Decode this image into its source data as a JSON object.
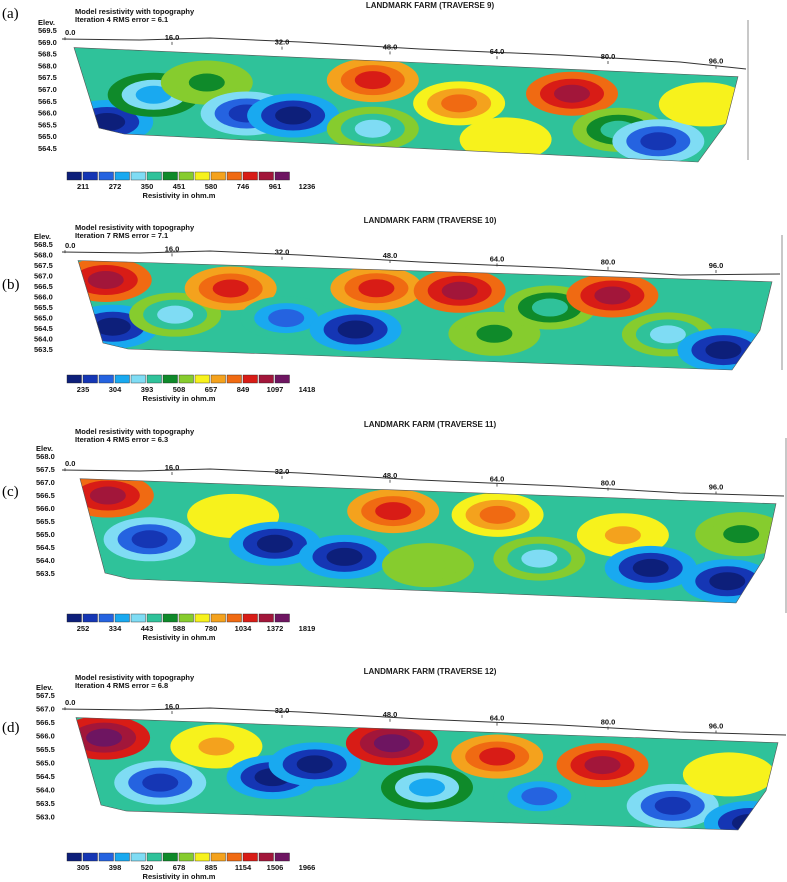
{
  "labels": [
    "(a)",
    "(b)",
    "(c)",
    "(d)"
  ],
  "panels": [
    {
      "title": "LANDMARK FARM (TRAVERSE 9)",
      "header1": "Model resistivity with topography",
      "header2": "Iteration 4 RMS error = 6.1",
      "elev_label": "Elev.",
      "elev_ticks": [
        "569.5",
        "569.0",
        "568.5",
        "568.0",
        "567.5",
        "567.0",
        "566.5",
        "566.0",
        "565.5",
        "565.0",
        "564.5"
      ],
      "x_ticks": [
        "0.0",
        "16.0",
        "32.0",
        "48.0",
        "64.0",
        "80.0",
        "96.0"
      ],
      "colorbar_values": [
        "211",
        "272",
        "350",
        "451",
        "580",
        "746",
        "961",
        "1236"
      ],
      "colorbar_title": "Resistivity in ohm.m"
    },
    {
      "title": "LANDMARK FARM (TRAVERSE 10)",
      "header1": "Model resistivity with topography",
      "header2": "Iteration 7 RMS error = 7.1",
      "elev_label": "Elev.",
      "elev_ticks": [
        "568.5",
        "568.0",
        "567.5",
        "567.0",
        "566.5",
        "566.0",
        "565.5",
        "565.0",
        "564.5",
        "564.0",
        "563.5"
      ],
      "x_ticks": [
        "0.0",
        "16.0",
        "32.0",
        "48.0",
        "64.0",
        "80.0",
        "96.0"
      ],
      "colorbar_values": [
        "235",
        "304",
        "393",
        "508",
        "657",
        "849",
        "1097",
        "1418"
      ],
      "colorbar_title": "Resistivity in ohm.m"
    },
    {
      "title": "LANDMARK FARM (TRAVERSE 11)",
      "header1": "Model resistivity with topography",
      "header2": "Iteration 4 RMS error = 6.3",
      "elev_label": "Elev.",
      "elev_ticks": [
        "568.0",
        "567.5",
        "567.0",
        "566.5",
        "566.0",
        "565.5",
        "565.0",
        "564.5",
        "564.0",
        "563.5"
      ],
      "x_ticks": [
        "0.0",
        "16.0",
        "32.0",
        "48.0",
        "64.0",
        "80.0",
        "96.0"
      ],
      "colorbar_values": [
        "252",
        "334",
        "443",
        "588",
        "780",
        "1034",
        "1372",
        "1819"
      ],
      "colorbar_title": "Resistivity in ohm.m"
    },
    {
      "title": "LANDMARK FARM (TRAVERSE 12)",
      "header1": "Model resistivity with topography",
      "header2": "Iteration 4 RMS error = 6.8",
      "elev_label": "Elev.",
      "elev_ticks": [
        "567.5",
        "567.0",
        "566.5",
        "566.0",
        "565.5",
        "565.0",
        "564.5",
        "564.0",
        "563.5",
        "563.0"
      ],
      "x_ticks": [
        "0.0",
        "16.0",
        "32.0",
        "48.0",
        "64.0",
        "80.0",
        "96.0"
      ],
      "colorbar_values": [
        "305",
        "398",
        "520",
        "678",
        "885",
        "1154",
        "1506",
        "1966"
      ],
      "colorbar_title": "Resistivity in ohm.m"
    }
  ],
  "palette": [
    "#0d1f7a",
    "#1536b4",
    "#2563e0",
    "#19a9f0",
    "#7fdcf4",
    "#2fc29a",
    "#0f8a2a",
    "#86cc2e",
    "#f7f21c",
    "#f4a21d",
    "#f06a12",
    "#d81c16",
    "#a2163a",
    "#6e1561"
  ]
}
